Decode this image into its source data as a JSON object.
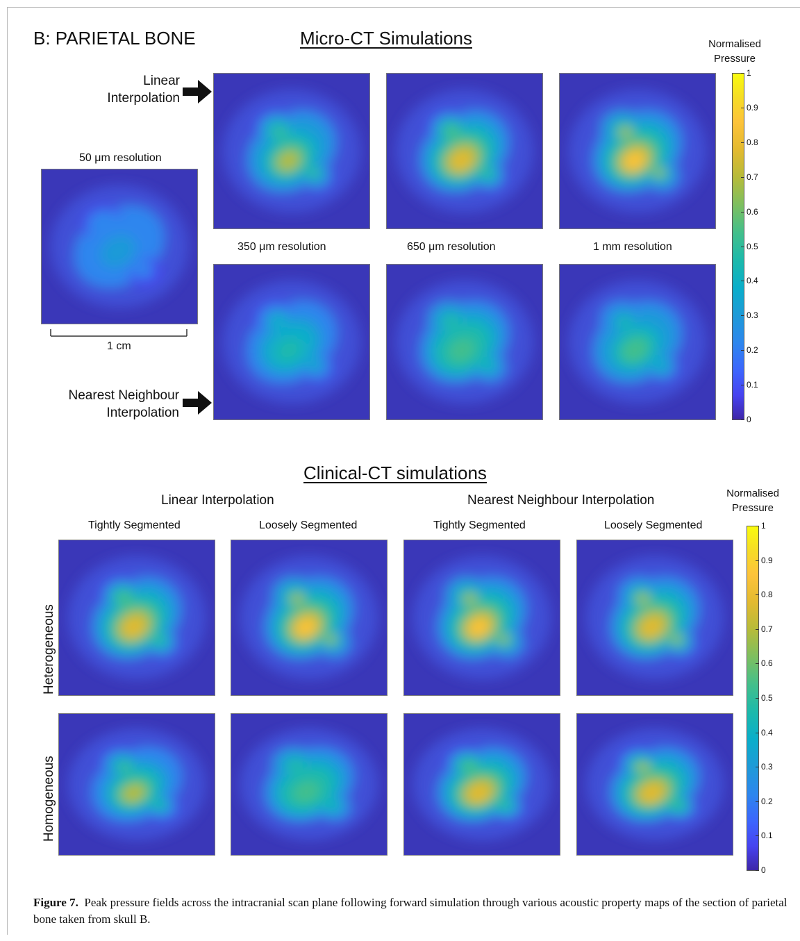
{
  "panel_label": "B: PARIETAL BONE",
  "micro": {
    "title": "Micro-CT Simulations",
    "row_linear": [
      "Linear",
      "Interpolation"
    ],
    "row_nearest": [
      "Nearest Neighbour",
      "Interpolation"
    ],
    "ref_title": "50 μm resolution",
    "scale_label": "1 cm",
    "res_labels": [
      "350 μm resolution",
      "650  μm resolution",
      "1 mm resolution"
    ],
    "colorbar_title": [
      "Normalised",
      "Pressure"
    ],
    "colorbar_ticks": [
      "1",
      "0.9",
      "0.8",
      "0.7",
      "0.6",
      "0.5",
      "0.4",
      "0.3",
      "0.2",
      "0.1",
      "0"
    ],
    "maps": [
      {
        "name": "reference-50um",
        "peak": 0.32
      },
      {
        "name": "linear-350um",
        "peak": 0.75
      },
      {
        "name": "linear-650um",
        "peak": 0.82
      },
      {
        "name": "linear-1mm",
        "peak": 0.9
      },
      {
        "name": "nearest-350um",
        "peak": 0.55
      },
      {
        "name": "nearest-650um",
        "peak": 0.68
      },
      {
        "name": "nearest-1mm",
        "peak": 0.6
      }
    ]
  },
  "clinical": {
    "title": "Clinical-CT simulations",
    "group_labels": [
      "Linear Interpolation",
      "Nearest Neighbour Interpolation"
    ],
    "col_labels": [
      "Tightly Segmented",
      "Loosely Segmented",
      "Tightly Segmented",
      "Loosely Segmented"
    ],
    "row_labels": [
      "Heterogeneous",
      "Homogeneous"
    ],
    "colorbar_title": [
      "Normalised",
      "Pressure"
    ],
    "colorbar_ticks": [
      "1",
      "0.9",
      "0.8",
      "0.7",
      "0.6",
      "0.5",
      "0.4",
      "0.3",
      "0.2",
      "0.1",
      "0"
    ],
    "maps": [
      {
        "name": "het-linear-tight",
        "peak": 0.82
      },
      {
        "name": "het-linear-loose",
        "peak": 0.9
      },
      {
        "name": "het-nearest-tight",
        "peak": 0.9
      },
      {
        "name": "het-nearest-loose",
        "peak": 0.88
      },
      {
        "name": "hom-linear-tight",
        "peak": 0.72
      },
      {
        "name": "hom-linear-loose",
        "peak": 0.68
      },
      {
        "name": "hom-nearest-tight",
        "peak": 0.82
      },
      {
        "name": "hom-nearest-loose",
        "peak": 0.84
      }
    ]
  },
  "caption": {
    "label": "Figure 7.",
    "text": "Peak pressure fields across the intracranial scan plane following forward simulation through various acoustic property maps of the section of parietal bone taken from skull B."
  }
}
